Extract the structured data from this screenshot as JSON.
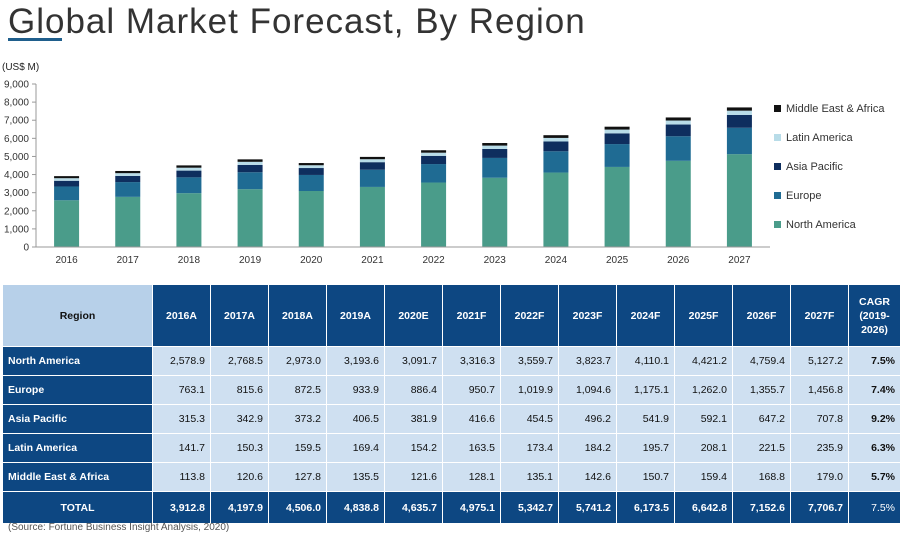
{
  "title": "Global Market Forecast, By Region",
  "source": "(Source: Fortune Business Insight Analysis, 2020)",
  "chart_data": {
    "type": "bar",
    "stacked": true,
    "ylabel": "(US$ M)",
    "ylim": [
      0,
      9000
    ],
    "yticks": [
      "0",
      "1,000",
      "2,000",
      "3,000",
      "4,000",
      "5,000",
      "6,000",
      "7,000",
      "8,000",
      "9,000"
    ],
    "ytick_values": [
      0,
      1000,
      2000,
      3000,
      4000,
      5000,
      6000,
      7000,
      8000,
      9000
    ],
    "categories": [
      "2016",
      "2017",
      "2018",
      "2019",
      "2020",
      "2021",
      "2022",
      "2023",
      "2024",
      "2025",
      "2026",
      "2027"
    ],
    "legend_position": "right",
    "series": [
      {
        "name": "North America",
        "color": "#4a9c8a",
        "values": [
          2578.9,
          2768.5,
          2973.0,
          3193.6,
          3091.7,
          3316.3,
          3559.7,
          3823.7,
          4110.1,
          4421.2,
          4759.4,
          5127.2
        ]
      },
      {
        "name": "Europe",
        "color": "#1f6b93",
        "values": [
          763.1,
          815.6,
          872.5,
          933.9,
          886.4,
          950.7,
          1019.9,
          1094.6,
          1175.1,
          1262.0,
          1355.7,
          1456.8
        ]
      },
      {
        "name": "Asia Pacific",
        "color": "#0e2e5e",
        "values": [
          315.3,
          342.9,
          373.2,
          406.5,
          381.9,
          416.6,
          454.5,
          496.2,
          541.9,
          592.1,
          647.2,
          707.8
        ]
      },
      {
        "name": "Latin America",
        "color": "#b8dce8",
        "values": [
          141.7,
          150.3,
          159.5,
          169.4,
          154.2,
          163.5,
          173.4,
          184.2,
          195.7,
          208.1,
          221.5,
          235.9
        ]
      },
      {
        "name": "Middle East & Africa",
        "color": "#111111",
        "values": [
          113.8,
          120.6,
          127.8,
          135.5,
          121.6,
          128.1,
          135.1,
          142.6,
          150.7,
          159.4,
          168.8,
          179.0
        ]
      }
    ],
    "legend_order": [
      "Middle East & Africa",
      "Latin America",
      "Asia Pacific",
      "Europe",
      "North America"
    ]
  },
  "table": {
    "headers": [
      "Region",
      "2016A",
      "2017A",
      "2018A",
      "2019A",
      "2020E",
      "2021F",
      "2022F",
      "2023F",
      "2024F",
      "2025F",
      "2026F",
      "2027F",
      "CAGR\n(2019-\n2026)"
    ],
    "rows": [
      {
        "label": "North America",
        "values": [
          "2,578.9",
          "2,768.5",
          "2,973.0",
          "3,193.6",
          "3,091.7",
          "3,316.3",
          "3,559.7",
          "3,823.7",
          "4,110.1",
          "4,421.2",
          "4,759.4",
          "5,127.2"
        ],
        "cagr": "7.5%"
      },
      {
        "label": "Europe",
        "values": [
          "763.1",
          "815.6",
          "872.5",
          "933.9",
          "886.4",
          "950.7",
          "1,019.9",
          "1,094.6",
          "1,175.1",
          "1,262.0",
          "1,355.7",
          "1,456.8"
        ],
        "cagr": "7.4%"
      },
      {
        "label": "Asia Pacific",
        "values": [
          "315.3",
          "342.9",
          "373.2",
          "406.5",
          "381.9",
          "416.6",
          "454.5",
          "496.2",
          "541.9",
          "592.1",
          "647.2",
          "707.8"
        ],
        "cagr": "9.2%"
      },
      {
        "label": "Latin America",
        "values": [
          "141.7",
          "150.3",
          "159.5",
          "169.4",
          "154.2",
          "163.5",
          "173.4",
          "184.2",
          "195.7",
          "208.1",
          "221.5",
          "235.9"
        ],
        "cagr": "6.3%"
      },
      {
        "label": "Middle East & Africa",
        "values": [
          "113.8",
          "120.6",
          "127.8",
          "135.5",
          "121.6",
          "128.1",
          "135.1",
          "142.6",
          "150.7",
          "159.4",
          "168.8",
          "179.0"
        ],
        "cagr": "5.7%"
      }
    ],
    "total": {
      "label": "TOTAL",
      "values": [
        "3,912.8",
        "4,197.9",
        "4,506.0",
        "4,838.8",
        "4,635.7",
        "4,975.1",
        "5,342.7",
        "5,741.2",
        "6,173.5",
        "6,642.8",
        "7,152.6",
        "7,706.7"
      ],
      "cagr": "7.5%"
    }
  }
}
